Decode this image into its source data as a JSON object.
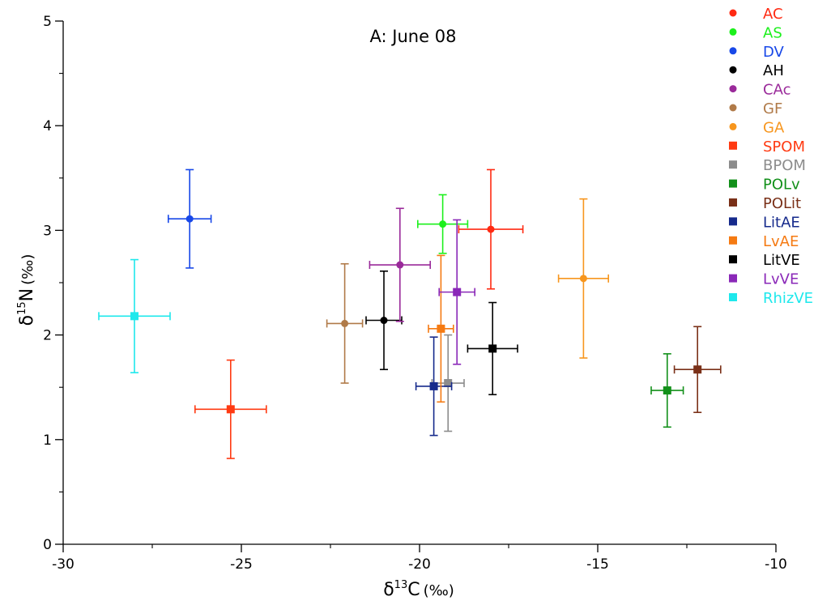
{
  "chart_data": {
    "type": "scatter",
    "title": "A: June 08",
    "xlabel": {
      "prefix": "δ",
      "sup": "13",
      "main": "C",
      "unit": "(‰)"
    },
    "ylabel": {
      "prefix": "δ",
      "sup": "15",
      "main": "N",
      "unit": "(‰)"
    },
    "xlim": [
      -30,
      -10
    ],
    "ylim": [
      0,
      5
    ],
    "xticks": [
      -30,
      -25,
      -20,
      -15,
      -10
    ],
    "xtick_labels": [
      "-30",
      "-25",
      "-20",
      "-15",
      "-10"
    ],
    "yticks": [
      0,
      1,
      2,
      3,
      4,
      5
    ],
    "ytick_labels": [
      "0",
      "1",
      "2",
      "3",
      "4",
      "5"
    ],
    "grid": false,
    "legend_position": "top-right",
    "error_bars": true,
    "series": [
      {
        "name": "AC",
        "color": "#ff2a12",
        "marker": "circle",
        "x": -18.0,
        "y": 3.01,
        "xerr": 0.9,
        "yerr": 0.57
      },
      {
        "name": "AS",
        "color": "#1cf01c",
        "marker": "circle",
        "x": -19.35,
        "y": 3.06,
        "xerr": 0.7,
        "yerr": 0.28
      },
      {
        "name": "DV",
        "color": "#1848e8",
        "marker": "circle",
        "x": -26.45,
        "y": 3.11,
        "xerr": 0.6,
        "yerr": 0.47
      },
      {
        "name": "AH",
        "color": "#000000",
        "marker": "circle",
        "x": -21.0,
        "y": 2.14,
        "xerr": 0.5,
        "yerr": 0.47
      },
      {
        "name": "CAc",
        "color": "#9a2a9a",
        "marker": "circle",
        "x": -20.55,
        "y": 2.67,
        "xerr": 0.85,
        "yerr": 0.54
      },
      {
        "name": "GF",
        "color": "#b07a48",
        "marker": "circle",
        "x": -22.1,
        "y": 2.11,
        "xerr": 0.5,
        "yerr": 0.57
      },
      {
        "name": "GA",
        "color": "#f7961e",
        "marker": "circle",
        "x": -15.4,
        "y": 2.54,
        "xerr": 0.7,
        "yerr": 0.76
      },
      {
        "name": "SPOM",
        "color": "#ff3a12",
        "marker": "square",
        "x": -25.3,
        "y": 1.29,
        "xerr": 1.0,
        "yerr": 0.47
      },
      {
        "name": "BPOM",
        "color": "#8c8c8c",
        "marker": "square",
        "x": -19.2,
        "y": 1.54,
        "xerr": 0.45,
        "yerr": 0.46
      },
      {
        "name": "POLv",
        "color": "#12901a",
        "marker": "square",
        "x": -13.05,
        "y": 1.47,
        "xerr": 0.45,
        "yerr": 0.35
      },
      {
        "name": "POLit",
        "color": "#7a3018",
        "marker": "square",
        "x": -12.2,
        "y": 1.67,
        "xerr": 0.65,
        "yerr": 0.41
      },
      {
        "name": "LitAE",
        "color": "#162a8c",
        "marker": "square",
        "x": -19.6,
        "y": 1.51,
        "xerr": 0.5,
        "yerr": 0.47
      },
      {
        "name": "LvAE",
        "color": "#f57a12",
        "marker": "square",
        "x": -19.4,
        "y": 2.06,
        "xerr": 0.35,
        "yerr": 0.7
      },
      {
        "name": "LitVE",
        "color": "#000000",
        "marker": "square",
        "x": -17.95,
        "y": 1.87,
        "xerr": 0.7,
        "yerr": 0.44
      },
      {
        "name": "LvVE",
        "color": "#8a28b8",
        "marker": "square",
        "x": -18.95,
        "y": 2.41,
        "xerr": 0.5,
        "yerr": 0.69
      },
      {
        "name": "RhizVE",
        "color": "#1ee8ec",
        "marker": "square",
        "x": -28.0,
        "y": 2.18,
        "xerr": 1.0,
        "yerr": 0.54
      }
    ]
  }
}
